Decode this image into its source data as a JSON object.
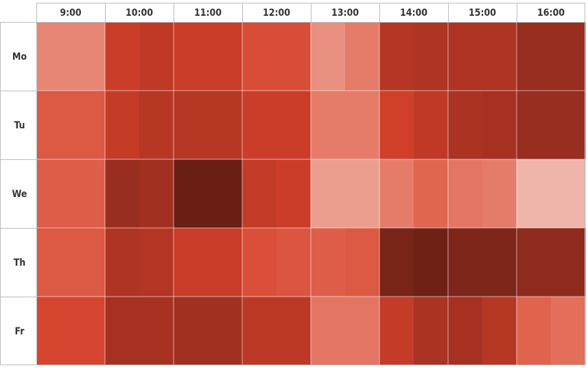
{
  "chart_data": {
    "type": "heatmap",
    "title": "",
    "xlabel": "",
    "ylabel": "",
    "columns": [
      "9:00",
      "10:00",
      "11:00",
      "12:00",
      "13:00",
      "14:00",
      "15:00",
      "16:00"
    ],
    "rows": [
      "Mo",
      "Tu",
      "We",
      "Th",
      "Fr"
    ],
    "sub_slots_per_column": 2,
    "value_range": [
      0,
      100
    ],
    "color_scale": [
      "#f6d2cb",
      "#eca294",
      "#e26a55",
      "#d4402a",
      "#b23524",
      "#8b2a1c",
      "#5c1a12"
    ],
    "grid": true,
    "legend": "none",
    "values": [
      [
        25,
        25,
        55,
        60,
        55,
        55,
        45,
        45,
        22,
        28,
        65,
        68,
        68,
        68,
        78,
        78
      ],
      [
        40,
        40,
        58,
        64,
        64,
        64,
        54,
        54,
        28,
        28,
        52,
        60,
        70,
        72,
        78,
        78
      ],
      [
        38,
        38,
        78,
        74,
        95,
        95,
        58,
        54,
        18,
        18,
        28,
        35,
        30,
        28,
        10,
        10
      ],
      [
        40,
        40,
        68,
        66,
        56,
        56,
        44,
        42,
        38,
        40,
        90,
        93,
        88,
        88,
        82,
        82
      ],
      [
        48,
        48,
        72,
        72,
        74,
        74,
        62,
        62,
        30,
        30,
        58,
        70,
        72,
        64,
        36,
        32
      ]
    ]
  }
}
